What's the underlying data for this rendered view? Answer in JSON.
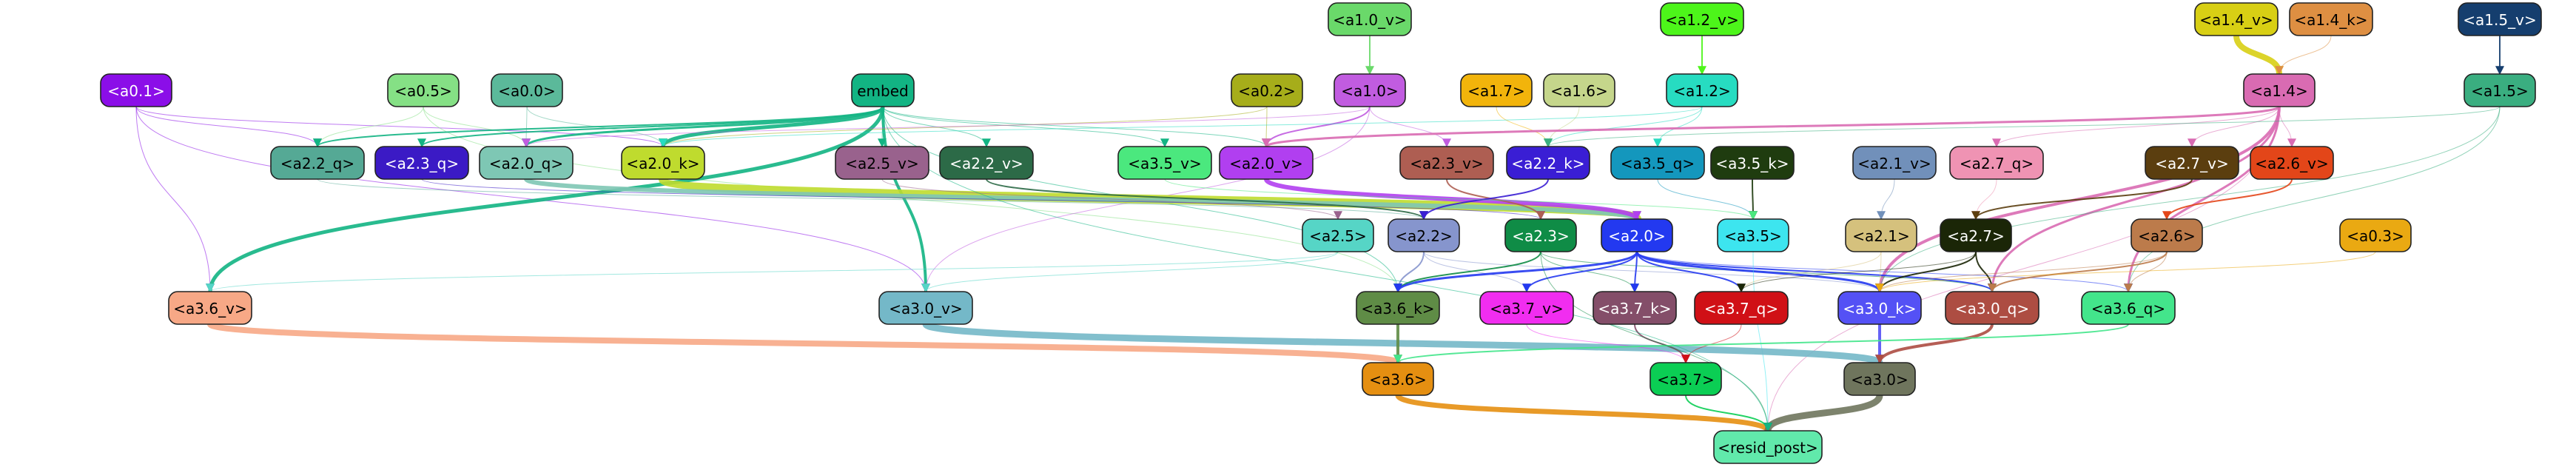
{
  "graph": {
    "nodes": [
      {
        "id": "a1.0_v",
        "label": "<a1.0_v>",
        "color": "#6ad96a"
      },
      {
        "id": "a1.2_v",
        "label": "<a1.2_v>",
        "color": "#4df51a"
      },
      {
        "id": "a1.4_v",
        "label": "<a1.4_v>",
        "color": "#d8cf14"
      },
      {
        "id": "a1.4_k",
        "label": "<a1.4_k>",
        "color": "#de8f42"
      },
      {
        "id": "a1.5_v",
        "label": "<a1.5_v>",
        "color": "#153e6e"
      },
      {
        "id": "a0.1",
        "label": "<a0.1>",
        "color": "#8b0ee8"
      },
      {
        "id": "a0.5",
        "label": "<a0.5>",
        "color": "#85e085"
      },
      {
        "id": "a0.0",
        "label": "<a0.0>",
        "color": "#5bb99a"
      },
      {
        "id": "embed",
        "label": "embed",
        "color": "#12b483"
      },
      {
        "id": "a0.2",
        "label": "<a0.2>",
        "color": "#a6ad1a"
      },
      {
        "id": "a1.0",
        "label": "<a1.0>",
        "color": "#c15ce0"
      },
      {
        "id": "a1.7",
        "label": "<a1.7>",
        "color": "#f2b40b"
      },
      {
        "id": "a1.6",
        "label": "<a1.6>",
        "color": "#c5d68b"
      },
      {
        "id": "a1.2",
        "label": "<a1.2>",
        "color": "#27dcc1"
      },
      {
        "id": "a1.4",
        "label": "<a1.4>",
        "color": "#d96bb2"
      },
      {
        "id": "a1.5",
        "label": "<a1.5>",
        "color": "#3aae80"
      },
      {
        "id": "a2.2_q",
        "label": "<a2.2_q>",
        "color": "#55a995"
      },
      {
        "id": "a2.3_q",
        "label": "<a2.3_q>",
        "color": "#3b1ac5"
      },
      {
        "id": "a2.0_q",
        "label": "<a2.0_q>",
        "color": "#7ec7b4"
      },
      {
        "id": "a2.0_k",
        "label": "<a2.0_k>",
        "color": "#bfdb2e"
      },
      {
        "id": "a2.5_v",
        "label": "<a2.5_v>",
        "color": "#99628d"
      },
      {
        "id": "a2.2_v",
        "label": "<a2.2_v>",
        "color": "#2c6a47"
      },
      {
        "id": "a3.5_v",
        "label": "<a3.5_v>",
        "color": "#4be87e"
      },
      {
        "id": "a2.0_v",
        "label": "<a2.0_v>",
        "color": "#b13ff0"
      },
      {
        "id": "a2.3_v",
        "label": "<a2.3_v>",
        "color": "#ae5e52"
      },
      {
        "id": "a2.2_k",
        "label": "<a2.2_k>",
        "color": "#3a1ed4"
      },
      {
        "id": "a3.5_q",
        "label": "<a3.5_q>",
        "color": "#1497bd"
      },
      {
        "id": "a3.5_k",
        "label": "<a3.5_k>",
        "color": "#1f3c0f"
      },
      {
        "id": "a2.1_v",
        "label": "<a2.1_v>",
        "color": "#7190ba"
      },
      {
        "id": "a2.7_q",
        "label": "<a2.7_q>",
        "color": "#ef93b3"
      },
      {
        "id": "a2.7_v",
        "label": "<a2.7_v>",
        "color": "#5b3e0f"
      },
      {
        "id": "a2.6_v",
        "label": "<a2.6_v>",
        "color": "#e34619"
      },
      {
        "id": "a2.5",
        "label": "<a2.5>",
        "color": "#56d5c6"
      },
      {
        "id": "a2.2",
        "label": "<a2.2>",
        "color": "#8695cd"
      },
      {
        "id": "a2.3",
        "label": "<a2.3>",
        "color": "#0f8c46"
      },
      {
        "id": "a2.0",
        "label": "<a2.0>",
        "color": "#2339f0"
      },
      {
        "id": "a3.5",
        "label": "<a3.5>",
        "color": "#3de5ef"
      },
      {
        "id": "a2.1",
        "label": "<a2.1>",
        "color": "#d5c17d"
      },
      {
        "id": "a2.7",
        "label": "<a2.7>",
        "color": "#1b2607"
      },
      {
        "id": "a2.6",
        "label": "<a2.6>",
        "color": "#bc7b4b"
      },
      {
        "id": "a0.3",
        "label": "<a0.3>",
        "color": "#eaa912"
      },
      {
        "id": "a3.6_v",
        "label": "<a3.6_v>",
        "color": "#f7a886"
      },
      {
        "id": "a3.0_v",
        "label": "<a3.0_v>",
        "color": "#74b8c8"
      },
      {
        "id": "a3.6_k",
        "label": "<a3.6_k>",
        "color": "#5f8c46"
      },
      {
        "id": "a3.7_v",
        "label": "<a3.7_v>",
        "color": "#f12df0"
      },
      {
        "id": "a3.7_k",
        "label": "<a3.7_k>",
        "color": "#844e69"
      },
      {
        "id": "a3.7_q",
        "label": "<a3.7_q>",
        "color": "#d01016"
      },
      {
        "id": "a3.0_k",
        "label": "<a3.0_k>",
        "color": "#5451f5"
      },
      {
        "id": "a3.0_q",
        "label": "<a3.0_q>",
        "color": "#ad4d42"
      },
      {
        "id": "a3.6_q",
        "label": "<a3.6_q>",
        "color": "#43e58b"
      },
      {
        "id": "a3.6",
        "label": "<a3.6>",
        "color": "#e58f11"
      },
      {
        "id": "a3.7",
        "label": "<a3.7>",
        "color": "#0bce54"
      },
      {
        "id": "a3.0",
        "label": "<a3.0>",
        "color": "#6f755d"
      },
      {
        "id": "resid_post",
        "label": "<resid_post>",
        "color": "#61e9ab"
      }
    ],
    "edges": [
      {
        "from": "a1.0_v",
        "to": "a1.0",
        "color": "#6ad96a",
        "weight": 2
      },
      {
        "from": "a1.2_v",
        "to": "a1.2",
        "color": "#4df51a",
        "weight": 2
      },
      {
        "from": "a1.4_v",
        "to": "a1.4",
        "color": "#d8cf14",
        "weight": 8
      },
      {
        "from": "a1.4_k",
        "to": "a1.4",
        "color": "#de8f42",
        "weight": 1
      },
      {
        "from": "a1.5_v",
        "to": "a1.5",
        "color": "#153e6e",
        "weight": 2
      },
      {
        "from": "a0.1",
        "to": "a2.2_q",
        "color": "#8b0ee8",
        "weight": 1
      },
      {
        "from": "a0.1",
        "to": "a2.0_k",
        "color": "#8b0ee8",
        "weight": 1
      },
      {
        "from": "a0.1",
        "to": "a3.6_v",
        "color": "#8b0ee8",
        "weight": 1
      },
      {
        "from": "a0.1",
        "to": "a3.0_v",
        "color": "#8b0ee8",
        "weight": 1
      },
      {
        "from": "a0.5",
        "to": "a2.0_q",
        "color": "#85e085",
        "weight": 1
      },
      {
        "from": "a0.5",
        "to": "a2.2_q",
        "color": "#85e085",
        "weight": 1
      },
      {
        "from": "a0.5",
        "to": "a3.6_k",
        "color": "#85e085",
        "weight": 1
      },
      {
        "from": "a0.0",
        "to": "a2.0_k",
        "color": "#5bb99a",
        "weight": 1
      },
      {
        "from": "a0.0",
        "to": "a2.0_q",
        "color": "#5bb99a",
        "weight": 1
      },
      {
        "from": "embed",
        "to": "a2.0_k",
        "color": "#12b483",
        "weight": 5
      },
      {
        "from": "embed",
        "to": "a2.0_q",
        "color": "#12b483",
        "weight": 3
      },
      {
        "from": "embed",
        "to": "a2.2_q",
        "color": "#12b483",
        "weight": 2
      },
      {
        "from": "embed",
        "to": "a2.3_q",
        "color": "#12b483",
        "weight": 2
      },
      {
        "from": "embed",
        "to": "a2.5_v",
        "color": "#12b483",
        "weight": 1
      },
      {
        "from": "embed",
        "to": "a2.2_v",
        "color": "#12b483",
        "weight": 1
      },
      {
        "from": "embed",
        "to": "a3.5_v",
        "color": "#12b483",
        "weight": 1
      },
      {
        "from": "embed",
        "to": "a2.0_v",
        "color": "#12b483",
        "weight": 1
      },
      {
        "from": "embed",
        "to": "a3.6_v",
        "color": "#12b483",
        "weight": 5
      },
      {
        "from": "embed",
        "to": "a3.0_v",
        "color": "#12b483",
        "weight": 4
      },
      {
        "from": "embed",
        "to": "a3.6_k",
        "color": "#12b483",
        "weight": 1
      },
      {
        "from": "a0.2",
        "to": "a2.0_v",
        "color": "#a6ad1a",
        "weight": 1
      },
      {
        "from": "a0.2",
        "to": "a2.0_k",
        "color": "#a6ad1a",
        "weight": 1
      },
      {
        "from": "a1.0",
        "to": "a2.0_v",
        "color": "#c15ce0",
        "weight": 2
      },
      {
        "from": "a1.0",
        "to": "a2.0_q",
        "color": "#c15ce0",
        "weight": 1
      },
      {
        "from": "a1.0",
        "to": "a2.3_v",
        "color": "#c15ce0",
        "weight": 1
      },
      {
        "from": "a1.0",
        "to": "a3.0_v",
        "color": "#c15ce0",
        "weight": 1
      },
      {
        "from": "a1.7",
        "to": "a2.2_k",
        "color": "#f2b40b",
        "weight": 1
      },
      {
        "from": "a1.6",
        "to": "a2.2_k",
        "color": "#c5d68b",
        "weight": 1
      },
      {
        "from": "a1.2",
        "to": "a2.2_k",
        "color": "#27dcc1",
        "weight": 1
      },
      {
        "from": "a1.2",
        "to": "a3.5_q",
        "color": "#27dcc1",
        "weight": 1
      },
      {
        "from": "a1.2",
        "to": "a2.0_k",
        "color": "#27dcc1",
        "weight": 1
      },
      {
        "from": "a1.4",
        "to": "a2.0_v",
        "color": "#d96bb2",
        "weight": 3
      },
      {
        "from": "a1.4",
        "to": "a2.7_q",
        "color": "#d96bb2",
        "weight": 1
      },
      {
        "from": "a1.4",
        "to": "a2.7_v",
        "color": "#d96bb2",
        "weight": 1
      },
      {
        "from": "a1.4",
        "to": "a2.6_v",
        "color": "#d96bb2",
        "weight": 1
      },
      {
        "from": "a1.4",
        "to": "a3.0_k",
        "color": "#d96bb2",
        "weight": 4
      },
      {
        "from": "a1.4",
        "to": "a3.0_q",
        "color": "#d96bb2",
        "weight": 3
      },
      {
        "from": "a1.4",
        "to": "a3.6_q",
        "color": "#d96bb2",
        "weight": 3
      },
      {
        "from": "a1.4",
        "to": "resid_post",
        "color": "#d96bb2",
        "weight": 1
      },
      {
        "from": "a1.5",
        "to": "a2.2_k",
        "color": "#3aae80",
        "weight": 1
      },
      {
        "from": "a1.5",
        "to": "a3.6_q",
        "color": "#3aae80",
        "weight": 1
      },
      {
        "from": "a1.5",
        "to": "a3.0_k",
        "color": "#3aae80",
        "weight": 1
      },
      {
        "from": "a2.0_k",
        "to": "a2.0",
        "color": "#bfdb2e",
        "weight": 12
      },
      {
        "from": "a2.0_q",
        "to": "a2.0",
        "color": "#7ec7b4",
        "weight": 6
      },
      {
        "from": "a2.2_q",
        "to": "a2.2",
        "color": "#55a995",
        "weight": 1
      },
      {
        "from": "a2.3_q",
        "to": "a2.3",
        "color": "#3b1ac5",
        "weight": 1
      },
      {
        "from": "a2.5_v",
        "to": "a2.5",
        "color": "#99628d",
        "weight": 1
      },
      {
        "from": "a2.2_v",
        "to": "a2.2",
        "color": "#2c6a47",
        "weight": 2
      },
      {
        "from": "a2.0_v",
        "to": "a2.0",
        "color": "#b13ff0",
        "weight": 6
      },
      {
        "from": "a2.3_v",
        "to": "a2.3",
        "color": "#ae5e52",
        "weight": 2
      },
      {
        "from": "a2.2_k",
        "to": "a2.2",
        "color": "#3a1ed4",
        "weight": 2
      },
      {
        "from": "a3.5_q",
        "to": "a3.5",
        "color": "#1497bd",
        "weight": 1
      },
      {
        "from": "a3.5_k",
        "to": "a3.5",
        "color": "#1f3c0f",
        "weight": 2
      },
      {
        "from": "a3.5_v",
        "to": "a3.5",
        "color": "#4be87e",
        "weight": 1
      },
      {
        "from": "a2.1_v",
        "to": "a2.1",
        "color": "#7190ba",
        "weight": 1
      },
      {
        "from": "a2.7_q",
        "to": "a2.7",
        "color": "#ef93b3",
        "weight": 1
      },
      {
        "from": "a2.7_v",
        "to": "a2.7",
        "color": "#5b3e0f",
        "weight": 2
      },
      {
        "from": "a2.6_v",
        "to": "a2.6",
        "color": "#e34619",
        "weight": 2
      },
      {
        "from": "a2.5",
        "to": "a3.6_v",
        "color": "#56d5c6",
        "weight": 1
      },
      {
        "from": "a2.5",
        "to": "a3.0_v",
        "color": "#56d5c6",
        "weight": 1
      },
      {
        "from": "a2.2",
        "to": "a3.6_k",
        "color": "#8695cd",
        "weight": 2
      },
      {
        "from": "a2.2",
        "to": "a3.7_v",
        "color": "#8695cd",
        "weight": 1
      },
      {
        "from": "a2.2",
        "to": "a3.0_k",
        "color": "#8695cd",
        "weight": 1
      },
      {
        "from": "a2.3",
        "to": "a3.6_k",
        "color": "#0f8c46",
        "weight": 2
      },
      {
        "from": "a2.3",
        "to": "a3.7_k",
        "color": "#0f8c46",
        "weight": 1
      },
      {
        "from": "a2.3",
        "to": "a3.0_q",
        "color": "#0f8c46",
        "weight": 1
      },
      {
        "from": "a2.0",
        "to": "a3.6_k",
        "color": "#2339f0",
        "weight": 3
      },
      {
        "from": "a2.0",
        "to": "a3.7_v",
        "color": "#2339f0",
        "weight": 2
      },
      {
        "from": "a2.0",
        "to": "a3.7_k",
        "color": "#2339f0",
        "weight": 2
      },
      {
        "from": "a2.0",
        "to": "a3.7_q",
        "color": "#2339f0",
        "weight": 2
      },
      {
        "from": "a2.0",
        "to": "a3.0_k",
        "color": "#2339f0",
        "weight": 3
      },
      {
        "from": "a2.0",
        "to": "a3.0_q",
        "color": "#2339f0",
        "weight": 2
      },
      {
        "from": "a2.0",
        "to": "a3.6_q",
        "color": "#2339f0",
        "weight": 1
      },
      {
        "from": "a3.5",
        "to": "resid_post",
        "color": "#3de5ef",
        "weight": 1
      },
      {
        "from": "a2.1",
        "to": "a3.0_k",
        "color": "#d5c17d",
        "weight": 1
      },
      {
        "from": "a2.1",
        "to": "a3.7_q",
        "color": "#d5c17d",
        "weight": 1
      },
      {
        "from": "a2.7",
        "to": "a3.0_k",
        "color": "#1b2607",
        "weight": 2
      },
      {
        "from": "a2.7",
        "to": "a3.0_q",
        "color": "#1b2607",
        "weight": 2
      },
      {
        "from": "a2.7",
        "to": "a3.7_q",
        "color": "#1b2607",
        "weight": 1
      },
      {
        "from": "a2.6",
        "to": "a3.0_q",
        "color": "#bc7b4b",
        "weight": 2
      },
      {
        "from": "a2.6",
        "to": "a3.6_q",
        "color": "#bc7b4b",
        "weight": 1
      },
      {
        "from": "a2.6",
        "to": "a3.0_k",
        "color": "#bc7b4b",
        "weight": 1
      },
      {
        "from": "a0.3",
        "to": "a3.0_k",
        "color": "#eaa912",
        "weight": 1
      },
      {
        "from": "a3.6_v",
        "to": "a3.6",
        "color": "#f7a886",
        "weight": 8
      },
      {
        "from": "a3.0_v",
        "to": "a3.0",
        "color": "#74b8c8",
        "weight": 9
      },
      {
        "from": "a3.6_k",
        "to": "a3.6",
        "color": "#5f8c46",
        "weight": 4
      },
      {
        "from": "a3.7_v",
        "to": "a3.7",
        "color": "#f12df0",
        "weight": 1
      },
      {
        "from": "a3.7_k",
        "to": "a3.7",
        "color": "#844e69",
        "weight": 2
      },
      {
        "from": "a3.7_q",
        "to": "a3.7",
        "color": "#d01016",
        "weight": 1
      },
      {
        "from": "a3.0_k",
        "to": "a3.0",
        "color": "#5451f5",
        "weight": 4
      },
      {
        "from": "a3.0_q",
        "to": "a3.0",
        "color": "#ad4d42",
        "weight": 4
      },
      {
        "from": "a3.6_q",
        "to": "a3.6",
        "color": "#43e58b",
        "weight": 2
      },
      {
        "from": "a3.6",
        "to": "resid_post",
        "color": "#e58f11",
        "weight": 7
      },
      {
        "from": "a3.7",
        "to": "resid_post",
        "color": "#0bce54",
        "weight": 2
      },
      {
        "from": "a3.0",
        "to": "resid_post",
        "color": "#6f755d",
        "weight": 9
      },
      {
        "from": "a2.3",
        "to": "resid_post",
        "color": "#0f8c46",
        "weight": 1
      },
      {
        "from": "embed",
        "to": "resid_post",
        "color": "#12b483",
        "weight": 1
      }
    ]
  }
}
